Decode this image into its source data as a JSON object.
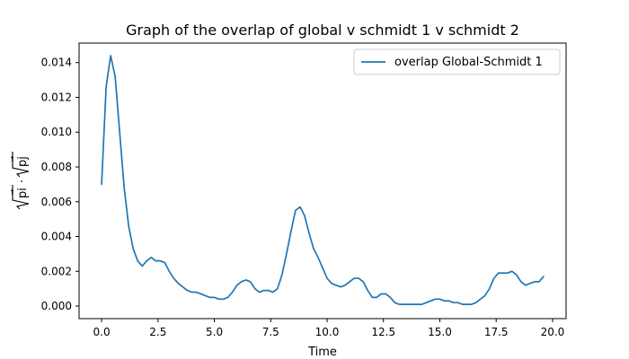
{
  "chart_data": {
    "type": "line",
    "title": "Graph of the overlap of global v schmidt 1 v schmidt 2",
    "xlabel": "Time",
    "ylabel_parts": {
      "left_radicand": "pi",
      "dot": "·",
      "right_radicand": "pj",
      "vector_mark": "→"
    },
    "xlim": [
      -1.0,
      20.6
    ],
    "ylim": [
      -0.00072,
      0.01512
    ],
    "xticks": [
      0.0,
      2.5,
      5.0,
      7.5,
      10.0,
      12.5,
      15.0,
      17.5,
      20.0
    ],
    "xtick_labels": [
      "0.0",
      "2.5",
      "5.0",
      "7.5",
      "10.0",
      "12.5",
      "15.0",
      "17.5",
      "20.0"
    ],
    "yticks": [
      0.0,
      0.002,
      0.004,
      0.006,
      0.008,
      0.01,
      0.012,
      0.014
    ],
    "ytick_labels": [
      "0.000",
      "0.002",
      "0.004",
      "0.006",
      "0.008",
      "0.010",
      "0.012",
      "0.014"
    ],
    "grid": false,
    "legend_position": "top-right",
    "series": [
      {
        "name": "overlap Global-Schmidt 1",
        "color": "#1f77b4",
        "x": [
          0.0,
          0.2,
          0.4,
          0.6,
          0.8,
          1.0,
          1.2,
          1.4,
          1.6,
          1.8,
          2.0,
          2.2,
          2.4,
          2.6,
          2.8,
          3.0,
          3.2,
          3.4,
          3.6,
          3.8,
          4.0,
          4.2,
          4.4,
          4.6,
          4.8,
          5.0,
          5.2,
          5.4,
          5.6,
          5.8,
          6.0,
          6.2,
          6.4,
          6.6,
          6.8,
          7.0,
          7.2,
          7.4,
          7.6,
          7.8,
          8.0,
          8.2,
          8.4,
          8.6,
          8.8,
          9.0,
          9.2,
          9.4,
          9.6,
          9.8,
          10.0,
          10.2,
          10.4,
          10.6,
          10.8,
          11.0,
          11.2,
          11.4,
          11.6,
          11.8,
          12.0,
          12.2,
          12.4,
          12.6,
          12.8,
          13.0,
          13.2,
          13.4,
          13.6,
          13.8,
          14.0,
          14.2,
          14.4,
          14.6,
          14.8,
          15.0,
          15.2,
          15.4,
          15.6,
          15.8,
          16.0,
          16.2,
          16.4,
          16.6,
          16.8,
          17.0,
          17.2,
          17.4,
          17.6,
          17.8,
          18.0,
          18.2,
          18.4,
          18.6,
          18.8,
          19.0,
          19.2,
          19.4,
          19.6
        ],
        "y": [
          0.007,
          0.0126,
          0.0144,
          0.0132,
          0.01,
          0.0068,
          0.0046,
          0.0033,
          0.0026,
          0.0023,
          0.0026,
          0.0028,
          0.0026,
          0.0026,
          0.0025,
          0.002,
          0.0016,
          0.0013,
          0.0011,
          0.0009,
          0.0008,
          0.0008,
          0.0007,
          0.0006,
          0.0005,
          0.0005,
          0.0004,
          0.0004,
          0.0005,
          0.0008,
          0.0012,
          0.0014,
          0.0015,
          0.0014,
          0.001,
          0.0008,
          0.0009,
          0.0009,
          0.0008,
          0.001,
          0.0018,
          0.003,
          0.0043,
          0.0055,
          0.0057,
          0.0052,
          0.0042,
          0.0033,
          0.0028,
          0.0022,
          0.0016,
          0.0013,
          0.0012,
          0.0011,
          0.0012,
          0.0014,
          0.0016,
          0.0016,
          0.0014,
          0.0009,
          0.0005,
          0.0005,
          0.0007,
          0.0007,
          0.0005,
          0.0002,
          0.0001,
          0.0001,
          0.0001,
          0.0001,
          0.0001,
          0.0001,
          0.0002,
          0.0003,
          0.0004,
          0.0004,
          0.0003,
          0.0003,
          0.0002,
          0.0002,
          0.0001,
          0.0001,
          0.0001,
          0.0002,
          0.0004,
          0.0006,
          0.001,
          0.0016,
          0.0019,
          0.0019,
          0.0019,
          0.002,
          0.0018,
          0.0014,
          0.0012,
          0.0013,
          0.0014,
          0.0014,
          0.0017
        ]
      }
    ]
  }
}
